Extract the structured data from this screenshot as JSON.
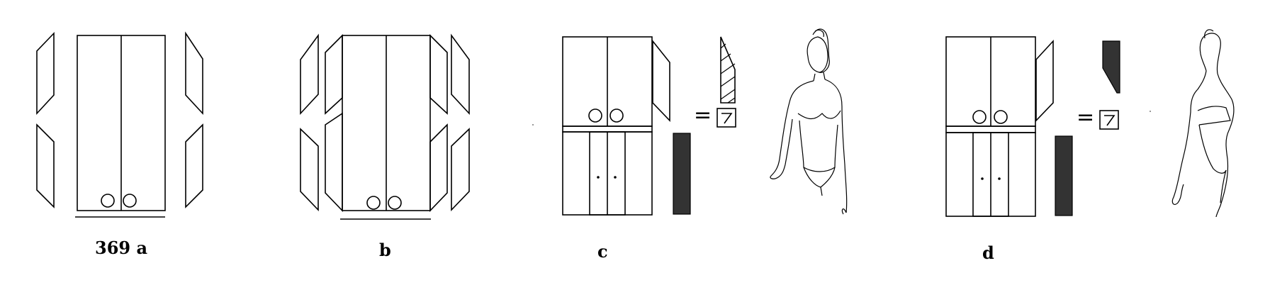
{
  "labels": {
    "a": "369 a",
    "b": "b",
    "c": "c",
    "d": "d"
  },
  "symbols": {
    "equals": "=",
    "box_glyph": "7"
  },
  "colors": {
    "ink": "#000000",
    "fill_dark": "#333333",
    "paper": "#ffffff"
  }
}
